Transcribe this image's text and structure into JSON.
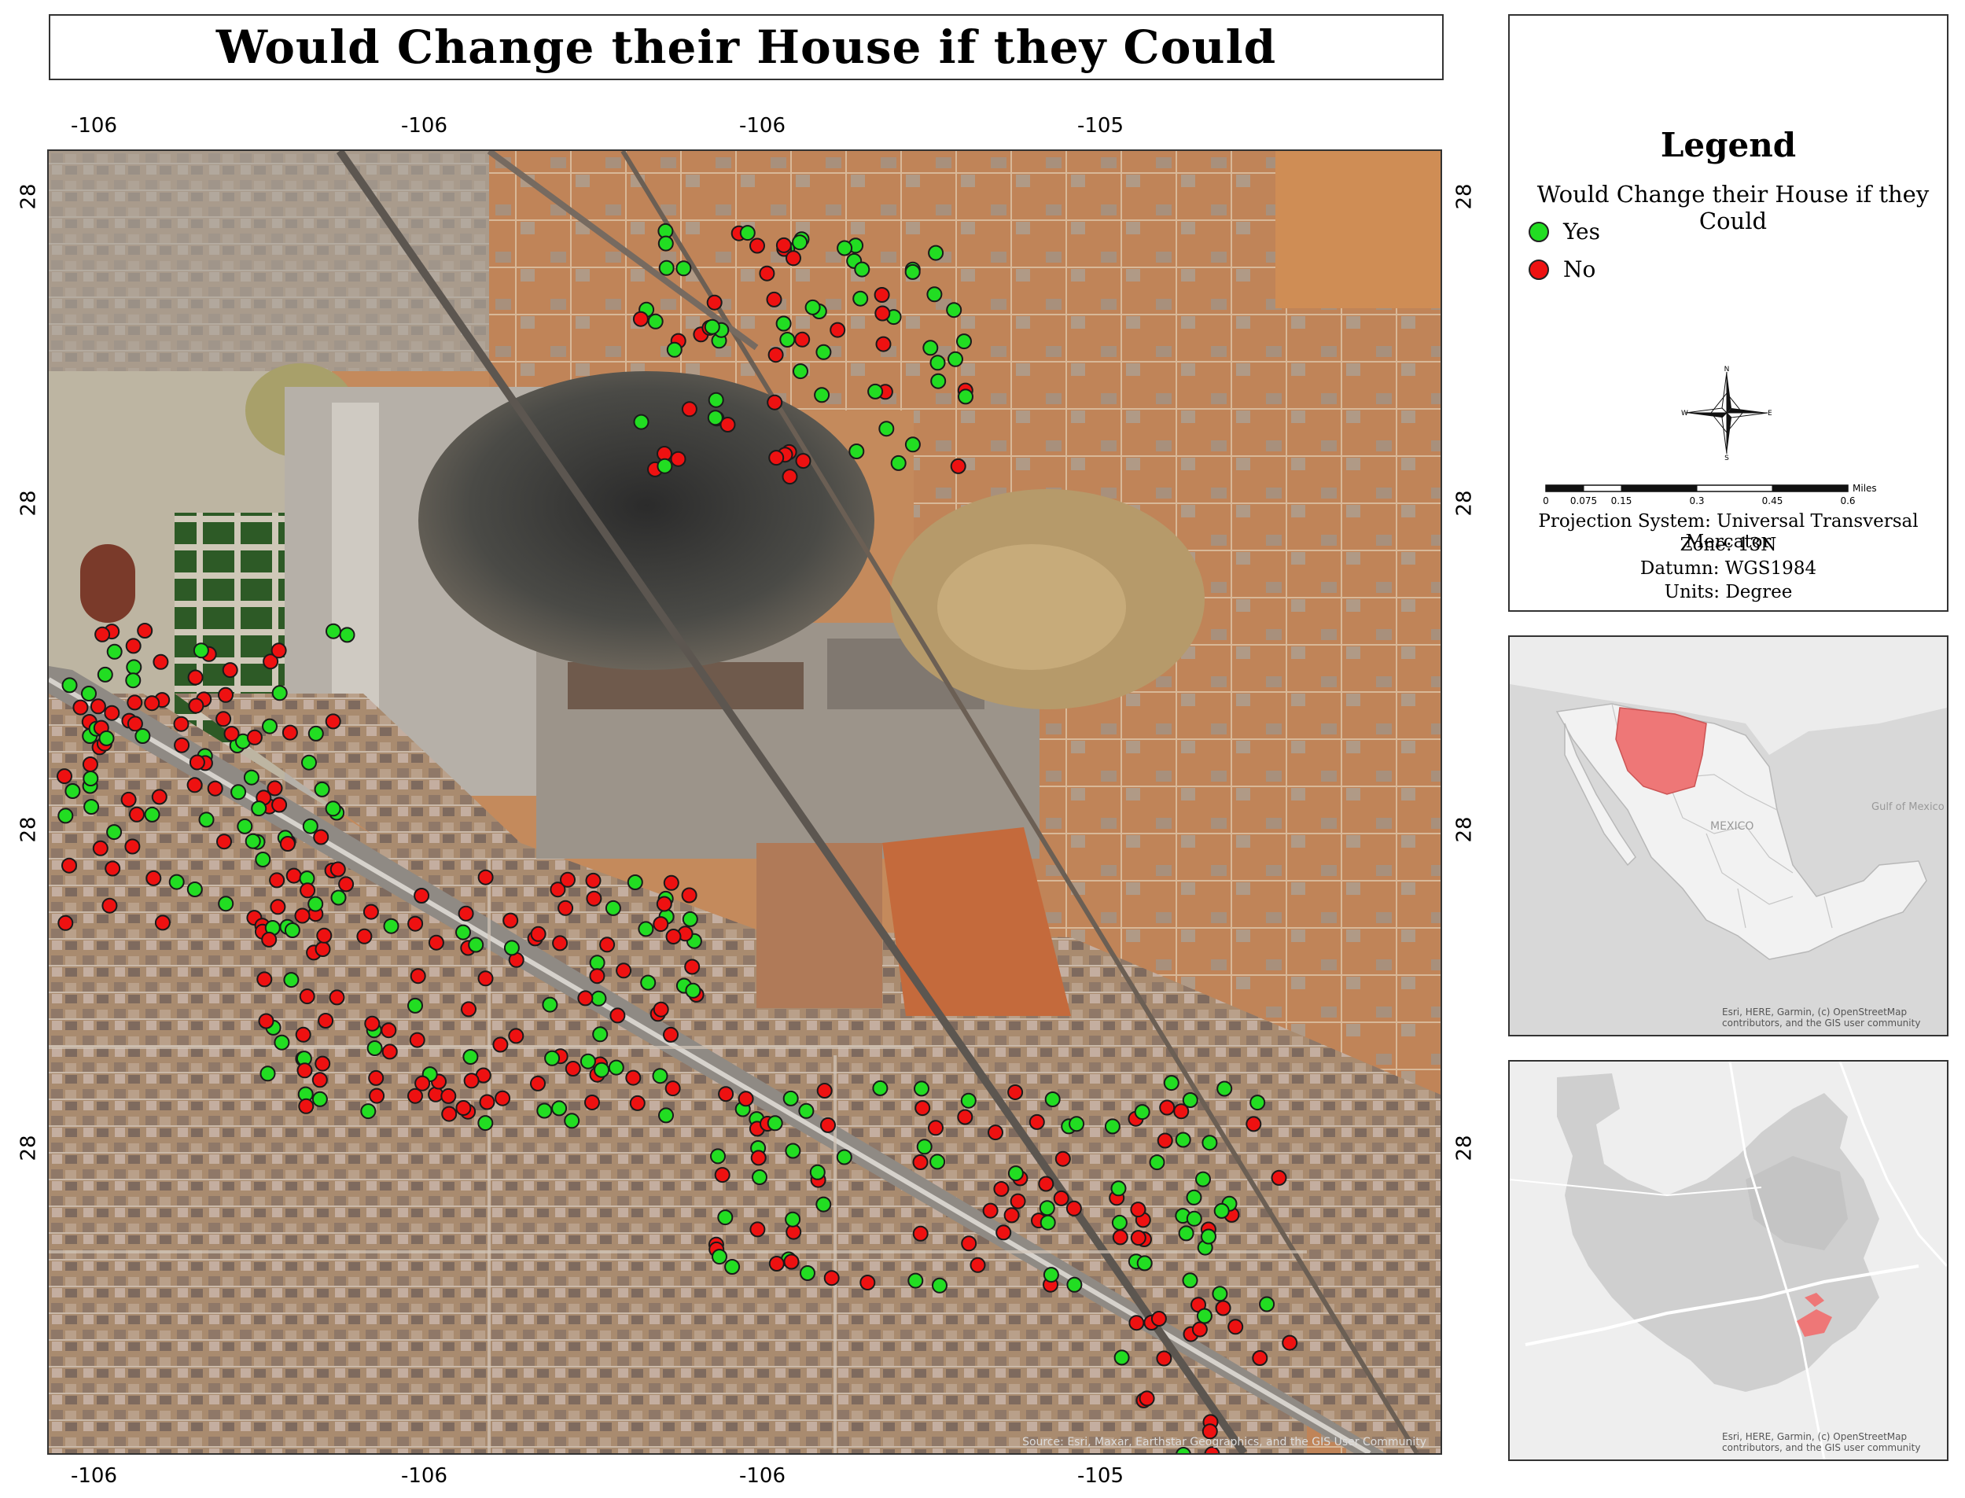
{
  "title": "Would Change their House if they Could",
  "axes": {
    "top_lon": [
      "-106",
      "-106",
      "-106",
      "-105"
    ],
    "bottom_lon": [
      "-106",
      "-106",
      "-106",
      "-105"
    ],
    "lat": [
      "28",
      "28",
      "28",
      "28"
    ]
  },
  "legend": {
    "heading": "Legend",
    "layer": "Would Change their House if they Could",
    "items": [
      {
        "label": "Yes",
        "color": "#22dd22"
      },
      {
        "label": "No",
        "color": "#ee1111"
      }
    ],
    "compass": {
      "n": "N",
      "s": "S",
      "e": "E",
      "w": "W"
    },
    "scale_labels": [
      "0",
      "0.075",
      "0.15",
      "0.3",
      "0.45",
      "0.6"
    ],
    "scale_unit": "Miles",
    "projection": "Projection System: Universal Transversal Mercator",
    "zone": "Zone: 13N",
    "datum": "Datumn: WGS1984",
    "units": "Units: Degree"
  },
  "inset1": {
    "labels": {
      "mexico": "MEXICO",
      "gulf": "Gulf of Mexico"
    },
    "highlight_color": "#ee7777",
    "credit": "Esri, HERE, Garmin, (c) OpenStreetMap contributors, and the GIS user community"
  },
  "inset2": {
    "highlight_color": "#ee7777",
    "credit": "Esri, HERE, Garmin, (c) OpenStreetMap contributors, and the GIS user community"
  },
  "map_credit": "Source: Esri, Maxar, Earthstar Geographics, and the GIS User Community",
  "colors": {
    "yes": "#22dd22",
    "no": "#ee1111",
    "outline": "#1a1a1a"
  }
}
